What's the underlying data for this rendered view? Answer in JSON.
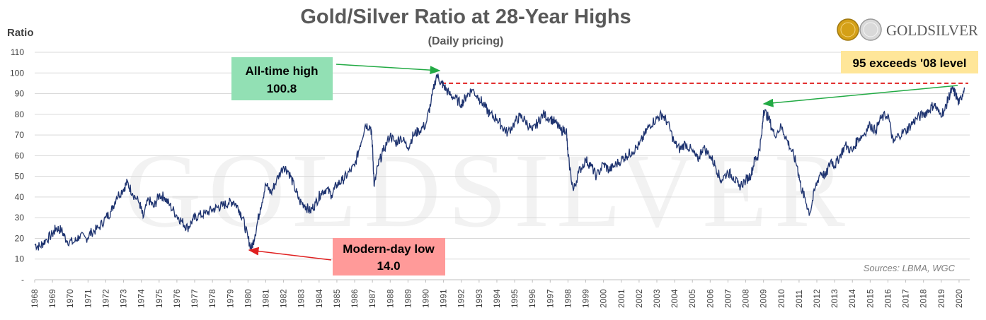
{
  "chart_data": {
    "type": "line",
    "title": "Gold/Silver Ratio at 28-Year Highs",
    "subtitle": "(Daily pricing)",
    "ylabel": "Ratio",
    "xlabel": "",
    "ylim": [
      0,
      110
    ],
    "xlim": [
      1968,
      2020.6
    ],
    "yticks": [
      "-",
      "10",
      "20",
      "30",
      "40",
      "50",
      "60",
      "70",
      "80",
      "90",
      "100",
      "110"
    ],
    "xticks": [
      "1968",
      "1969",
      "1970",
      "1971",
      "1972",
      "1973",
      "1974",
      "1975",
      "1976",
      "1977",
      "1978",
      "1979",
      "1980",
      "1981",
      "1982",
      "1983",
      "1984",
      "1985",
      "1986",
      "1987",
      "1988",
      "1989",
      "1990",
      "1991",
      "1992",
      "1993",
      "1994",
      "1995",
      "1996",
      "1997",
      "1998",
      "1999",
      "2000",
      "2001",
      "2002",
      "2003",
      "2004",
      "2005",
      "2006",
      "2007",
      "2008",
      "2009",
      "2010",
      "2011",
      "2012",
      "2013",
      "2014",
      "2015",
      "2016",
      "2017",
      "2018",
      "2019",
      "2020"
    ],
    "grid": true,
    "line_color": "#1f3470",
    "series": [
      {
        "x": [
          1968.0,
          1968.3,
          1968.6,
          1969.0,
          1969.2,
          1969.5,
          1969.8,
          1970.2,
          1970.5,
          1970.9,
          1971.2,
          1971.6,
          1972.0,
          1972.3,
          1972.6,
          1973.0,
          1973.2,
          1973.5,
          1973.9,
          1974.1,
          1974.4,
          1974.7,
          1975.0,
          1975.3,
          1975.6,
          1976.0,
          1976.3,
          1976.6,
          1976.9,
          1977.2,
          1977.6,
          1978.0,
          1978.3,
          1978.6,
          1978.9,
          1979.2,
          1979.5,
          1979.7,
          1980.0,
          1980.2,
          1980.4,
          1980.7,
          1981.0,
          1981.3,
          1981.6,
          1982.0,
          1982.3,
          1982.6,
          1982.9,
          1983.2,
          1983.5,
          1983.8,
          1984.1,
          1984.4,
          1984.7,
          1985.0,
          1985.3,
          1985.6,
          1986.0,
          1986.3,
          1986.6,
          1986.9,
          1987.0,
          1987.1,
          1987.3,
          1987.6,
          1988.0,
          1988.3,
          1988.6,
          1989.0,
          1989.3,
          1989.6,
          1990.0,
          1990.3,
          1990.6,
          1990.9,
          1991.0,
          1991.3,
          1991.6,
          1992.0,
          1992.3,
          1992.6,
          1993.0,
          1993.3,
          1993.6,
          1994.0,
          1994.3,
          1994.6,
          1995.0,
          1995.3,
          1995.6,
          1996.0,
          1996.3,
          1996.6,
          1997.0,
          1997.3,
          1997.6,
          1997.9,
          1998.0,
          1998.3,
          1998.6,
          1999.0,
          1999.3,
          1999.6,
          2000.0,
          2000.3,
          2000.6,
          2001.0,
          2001.3,
          2001.6,
          2002.0,
          2002.3,
          2002.6,
          2003.0,
          2003.3,
          2003.6,
          2004.0,
          2004.3,
          2004.6,
          2005.0,
          2005.3,
          2005.6,
          2006.0,
          2006.3,
          2006.6,
          2007.0,
          2007.3,
          2007.6,
          2008.0,
          2008.3,
          2008.5,
          2008.7,
          2008.9,
          2009.0,
          2009.3,
          2009.6,
          2010.0,
          2010.3,
          2010.6,
          2010.9,
          2011.1,
          2011.3,
          2011.6,
          2011.9,
          2012.2,
          2012.5,
          2012.8,
          2013.0,
          2013.3,
          2013.6,
          2014.0,
          2014.3,
          2014.6,
          2015.0,
          2015.3,
          2015.6,
          2016.0,
          2016.3,
          2016.6,
          2017.0,
          2017.3,
          2017.6,
          2018.0,
          2018.3,
          2018.6,
          2018.9,
          2019.2,
          2019.4,
          2019.6,
          2019.8,
          2020.0,
          2020.3
        ],
        "y": [
          17,
          16,
          19,
          22,
          25,
          24,
          19,
          18,
          21,
          20,
          23,
          25,
          30,
          33,
          40,
          44,
          47,
          42,
          37,
          30,
          39,
          35,
          41,
          40,
          36,
          31,
          28,
          25,
          29,
          31,
          32,
          34,
          35,
          36,
          37,
          38,
          34,
          30,
          20,
          15,
          22,
          35,
          46,
          42,
          48,
          55,
          52,
          45,
          38,
          36,
          33,
          37,
          42,
          44,
          41,
          46,
          48,
          51,
          55,
          65,
          75,
          74,
          65,
          45,
          55,
          62,
          70,
          66,
          69,
          64,
          70,
          72,
          75,
          86,
          99,
          95,
          94,
          90,
          88,
          85,
          89,
          92,
          88,
          84,
          80,
          78,
          74,
          71,
          76,
          79,
          77,
          72,
          76,
          80,
          78,
          76,
          72,
          73,
          60,
          43,
          52,
          58,
          55,
          50,
          56,
          53,
          55,
          58,
          60,
          62,
          65,
          70,
          75,
          78,
          80,
          76,
          66,
          63,
          66,
          62,
          58,
          64,
          60,
          55,
          48,
          52,
          50,
          45,
          48,
          51,
          58,
          60,
          70,
          82,
          78,
          70,
          74,
          68,
          62,
          55,
          45,
          40,
          32,
          44,
          52,
          50,
          58,
          55,
          60,
          65,
          62,
          68,
          70,
          75,
          72,
          78,
          80,
          66,
          70,
          72,
          75,
          78,
          80,
          82,
          85,
          80,
          82,
          88,
          92,
          90,
          85,
          93
        ]
      }
    ],
    "annotations": [
      {
        "label_line1": "All-time high",
        "label_line2": "100.8",
        "x": 1990.9,
        "y": 100.8,
        "box_color": "#92e0b4",
        "arrow_color": "#22aa44"
      },
      {
        "label_line1": "Modern-day low",
        "label_line2": "14.0",
        "x": 1980.0,
        "y": 14.0,
        "box_color": "#ff9a99",
        "arrow_color": "#e02020"
      },
      {
        "label_line1": "95 exceeds '08 level",
        "box_color": "#ffe699",
        "reference_y": 95,
        "reference_color": "#e02020"
      }
    ],
    "source": "Sources: LBMA, WGC"
  },
  "watermark_text": "GOLDSILVER",
  "logo": {
    "text_gold": "GOLD",
    "text_silver": "SILVER",
    "gold_color": "#d4a017",
    "silver_color": "#b8b8b8"
  }
}
